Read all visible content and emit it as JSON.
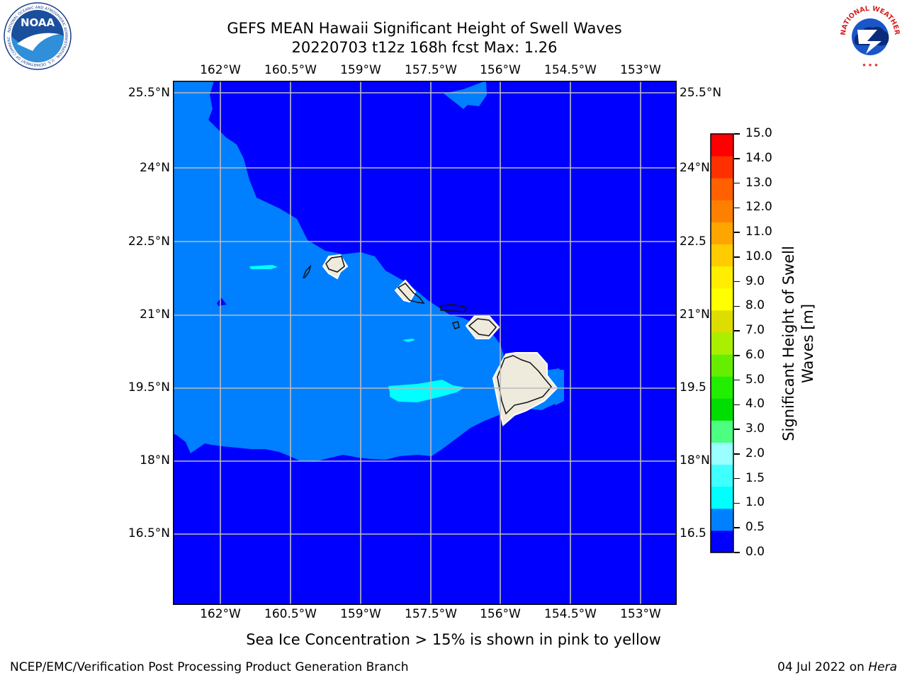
{
  "header": {
    "title_line1": "GEFS MEAN Hawaii Significant Height of Swell Waves",
    "title_line2": "20220703 t12z 168h fcst   Max: 1.26"
  },
  "logos": {
    "left": {
      "name": "noaa-logo",
      "text": "NOAA",
      "ring_text": "NATIONAL OCEANIC AND ATMOSPHERIC ADMINISTRATION · U.S. DEPARTMENT OF COMMERCE"
    },
    "right": {
      "name": "nws-logo",
      "ring_text": "NATIONAL WEATHER SERVICE"
    }
  },
  "map": {
    "lon_ticks": [
      "162°W",
      "160.5°W",
      "159°W",
      "157.5°W",
      "156°W",
      "154.5°W",
      "153°W"
    ],
    "lat_ticks_left": [
      "25.5°N",
      "24°N",
      "22.5°N",
      "21°N",
      "19.5°N",
      "18°N",
      "16.5°N"
    ],
    "lat_ticks_right": [
      "25.5°N",
      "24°N",
      "22.5",
      "21°N",
      "19.5",
      "18°N",
      "16.5"
    ],
    "land_color": "#eeebdd",
    "ocean_colors": {
      "0.0-0.5": "#0000ff",
      "0.5-1.0": "#0080ff",
      "1.0-1.5": "#00ffff"
    },
    "gridlines": true
  },
  "colorbar": {
    "label": "Significant Height of Swell Waves [m]",
    "label_line1": "Significant Height of Swell",
    "label_line2": "Waves [m]",
    "ticks": [
      "15.0",
      "14.0",
      "13.0",
      "12.0",
      "11.0",
      "10.0",
      "9.0",
      "8.0",
      "7.0",
      "6.0",
      "5.0",
      "4.0",
      "3.0",
      "2.0",
      "1.5",
      "1.0",
      "0.5",
      "0.0"
    ],
    "colors_bottom_to_top": [
      "#0000ff",
      "#0080ff",
      "#00ffff",
      "#40ffff",
      "#99ffff",
      "#4dff80",
      "#00dd00",
      "#22ee00",
      "#66ee00",
      "#aaee00",
      "#dddd00",
      "#ffff00",
      "#ffee00",
      "#ffcc00",
      "#ffa500",
      "#ff8000",
      "#ff6000",
      "#ff3000",
      "#ff0000"
    ]
  },
  "note": "Sea Ice Concentration > 15% is shown in pink to yellow",
  "footer": {
    "left": "NCEP/EMC/Verification Post Processing Product Generation Branch",
    "date": "04 Jul 2022 on ",
    "machine": "Hera"
  }
}
